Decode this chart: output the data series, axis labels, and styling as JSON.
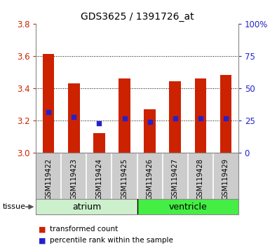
{
  "title": "GDS3625 / 1391726_at",
  "samples": [
    "GSM119422",
    "GSM119423",
    "GSM119424",
    "GSM119425",
    "GSM119426",
    "GSM119427",
    "GSM119428",
    "GSM119429"
  ],
  "transformed_count": [
    3.61,
    3.43,
    3.12,
    3.46,
    3.27,
    3.44,
    3.46,
    3.48
  ],
  "percentile_rank": [
    3.25,
    3.22,
    3.18,
    3.21,
    3.19,
    3.21,
    3.21,
    3.21
  ],
  "y_min": 3.0,
  "y_max": 3.8,
  "y_ticks_left": [
    3.0,
    3.2,
    3.4,
    3.6,
    3.8
  ],
  "y_ticks_right_labels": [
    "0",
    "25",
    "50",
    "75",
    "100%"
  ],
  "bar_color": "#cc2200",
  "dot_color": "#2222cc",
  "grid_color": "#000000",
  "atrium_color": "#ccf0cc",
  "ventricle_color": "#44ee44",
  "tick_label_bg": "#cccccc",
  "cell_border_color": "#888888",
  "legend_bar_label": "transformed count",
  "legend_dot_label": "percentile rank within the sample",
  "background_color": "#ffffff",
  "plot_bg": "#ffffff",
  "ylabel_color_left": "#cc2200",
  "ylabel_color_right": "#2222cc"
}
